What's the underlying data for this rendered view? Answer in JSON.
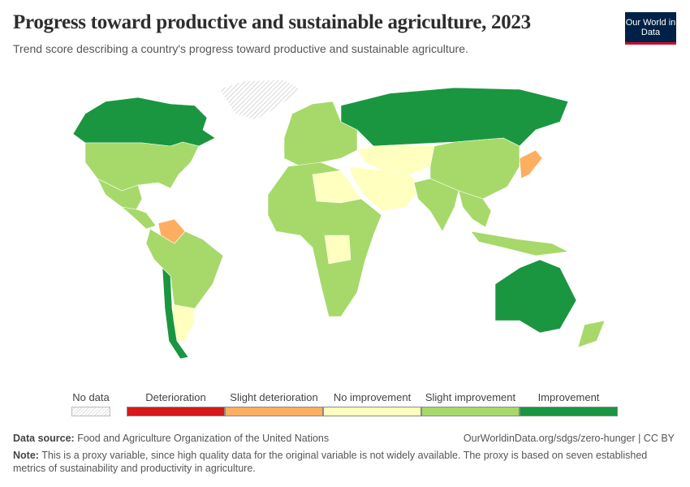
{
  "header": {
    "title": "Progress toward productive and sustainable agriculture, 2023",
    "subtitle": "Trend score describing a country's progress toward productive and sustainable agriculture.",
    "logo": "Our World in Data"
  },
  "legend": {
    "no_data_label": "No data",
    "bins": [
      {
        "label": "Deterioration",
        "color": "#d7191c"
      },
      {
        "label": "Slight deterioration",
        "color": "#fdae61"
      },
      {
        "label": "No improvement",
        "color": "#ffffbf"
      },
      {
        "label": "Slight improvement",
        "color": "#a6d96a"
      },
      {
        "label": "Improvement",
        "color": "#1a9641"
      }
    ]
  },
  "regions": [
    {
      "name": "Canada",
      "category": 4
    },
    {
      "name": "Greenland",
      "category": null
    },
    {
      "name": "United States",
      "category": 3
    },
    {
      "name": "Mexico",
      "category": 3
    },
    {
      "name": "Central America",
      "category": 3
    },
    {
      "name": "Venezuela",
      "category": 1
    },
    {
      "name": "South America",
      "category": 3
    },
    {
      "name": "Chile",
      "category": 4
    },
    {
      "name": "Argentina",
      "category": 2
    },
    {
      "name": "Europe",
      "category": 3
    },
    {
      "name": "Russia",
      "category": 4
    },
    {
      "name": "Central Asia",
      "category": 2
    },
    {
      "name": "Middle East",
      "category": 2
    },
    {
      "name": "China",
      "category": 3
    },
    {
      "name": "Japan",
      "category": 1
    },
    {
      "name": "India",
      "category": 3
    },
    {
      "name": "Southeast Asia",
      "category": 3
    },
    {
      "name": "Africa",
      "category": 3
    },
    {
      "name": "Egypt and Libya",
      "category": 2
    },
    {
      "name": "DR Congo",
      "category": 2
    },
    {
      "name": "Australia",
      "category": 4
    },
    {
      "name": "New Zealand",
      "category": 3
    },
    {
      "name": "Indonesia",
      "category": 3
    }
  ],
  "footer": {
    "source_label": "Data source:",
    "source": "Food and Agriculture Organization of the United Nations",
    "url": "OurWorldinData.org/sdgs/zero-hunger | CC BY",
    "note_label": "Note:",
    "note": "This is a proxy variable, since high quality data for the original variable is not widely available. The proxy is based on seven established metrics of sustainability and productivity in agriculture."
  }
}
